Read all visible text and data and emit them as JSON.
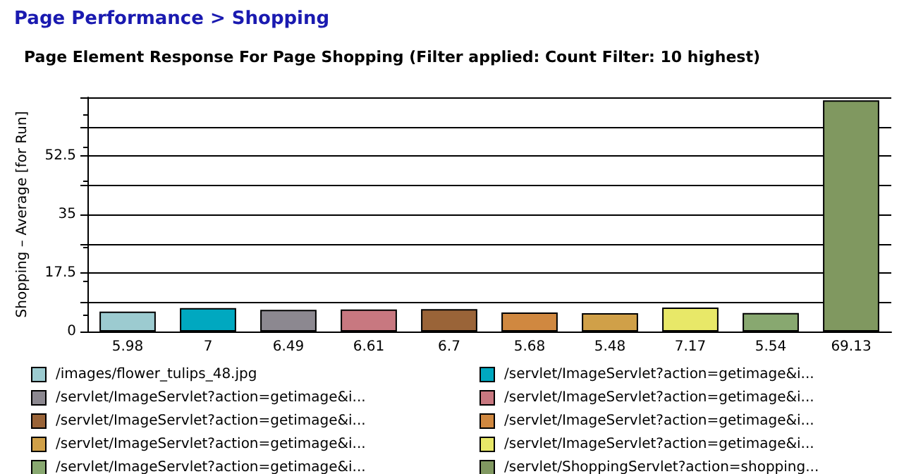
{
  "chart_data": {
    "type": "bar",
    "title": "Page Performance > Shopping",
    "subtitle": "Page Element Response For Page Shopping (Filter applied: Count Filter: 10 highest)",
    "ylabel": "Shopping – Average [for Run]",
    "categories": [
      null,
      null,
      null,
      null,
      null,
      null,
      null,
      null,
      null,
      null
    ],
    "stacked": true,
    "data_labels": true,
    "grid": "y",
    "legend": "bottom",
    "ylim": [
      0,
      70
    ],
    "yticks": [
      0,
      {
        "value": 8.75,
        "label": null
      },
      17.5,
      {
        "value": 26.25,
        "label": null
      },
      35,
      {
        "value": 43.75,
        "label": null
      },
      52.5,
      {
        "value": 61.25,
        "label": null
      },
      {
        "value": 70,
        "label": null
      }
    ],
    "series": [
      {
        "name": "/images/flower_tulips_48.jpg",
        "color": "#9ccbd0",
        "values": [
          5.98,
          null,
          null,
          null,
          null,
          null,
          null,
          null,
          null,
          null
        ]
      },
      {
        "name": "/servlet/ImageServlet?action=getimage&i...",
        "color": "#00a8c0",
        "values": [
          null,
          7,
          null,
          null,
          null,
          null,
          null,
          null,
          null,
          null
        ]
      },
      {
        "name": "/servlet/ImageServlet?action=getimage&i...",
        "color": "#8c8890",
        "values": [
          null,
          null,
          6.49,
          null,
          null,
          null,
          null,
          null,
          null,
          null
        ]
      },
      {
        "name": "/servlet/ImageServlet?action=getimage&i...",
        "color": "#c87880",
        "values": [
          null,
          null,
          null,
          6.61,
          null,
          null,
          null,
          null,
          null,
          null
        ]
      },
      {
        "name": "/servlet/ImageServlet?action=getimage&i...",
        "color": "#9a6438",
        "values": [
          null,
          null,
          null,
          null,
          6.7,
          null,
          null,
          null,
          null,
          null
        ]
      },
      {
        "name": "/servlet/ImageServlet?action=getimage&i...",
        "color": "#d08840",
        "values": [
          null,
          null,
          null,
          null,
          null,
          5.68,
          null,
          null,
          null,
          null
        ]
      },
      {
        "name": "/servlet/ImageServlet?action=getimage&i...",
        "color": "#d0a048",
        "values": [
          null,
          null,
          null,
          null,
          null,
          null,
          5.48,
          null,
          null,
          null
        ]
      },
      {
        "name": "/servlet/ImageServlet?action=getimage&i...",
        "color": "#e8e868",
        "values": [
          null,
          null,
          null,
          null,
          null,
          null,
          null,
          7.17,
          null,
          null
        ]
      },
      {
        "name": "/servlet/ImageServlet?action=getimage&i...",
        "color": "#88a870",
        "values": [
          null,
          null,
          null,
          null,
          null,
          null,
          null,
          null,
          5.54,
          null
        ]
      },
      {
        "name": "/servlet/ShoppingServlet?action=shopping...",
        "color": "#809860",
        "values": [
          null,
          null,
          null,
          null,
          null,
          null,
          null,
          null,
          null,
          69.13
        ]
      }
    ]
  }
}
